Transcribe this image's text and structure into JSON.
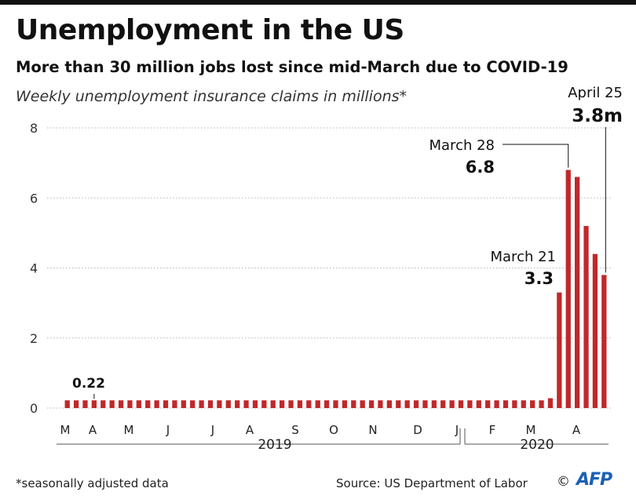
{
  "header": {
    "title": "Unemployment in the US",
    "subtitle": "More than 30 million jobs lost since mid-March due to COVID-19",
    "note": "Weekly unemployment insurance claims in millions*"
  },
  "footer": {
    "footnote": "*seasonally adjusted data",
    "source": "Source: US Department of Labor",
    "copyright": "©",
    "logo": "AFP"
  },
  "colors": {
    "bar": "#c0282a",
    "grid": "#b5b5b5",
    "text": "#111111"
  },
  "chart_data": {
    "type": "bar",
    "ylim": [
      0,
      8
    ],
    "yticks": [
      0,
      2,
      4,
      6,
      8
    ],
    "grid": "dotted horizontal",
    "month_ticks": [
      "M",
      "A",
      "M",
      "J",
      "J",
      "A",
      "S",
      "O",
      "N",
      "D",
      "J",
      "F",
      "M",
      "A"
    ],
    "year_labels": [
      "2019",
      "2020"
    ],
    "values": [
      0.22,
      0.22,
      0.22,
      0.22,
      0.22,
      0.22,
      0.22,
      0.22,
      0.22,
      0.22,
      0.22,
      0.22,
      0.22,
      0.22,
      0.22,
      0.22,
      0.22,
      0.22,
      0.22,
      0.22,
      0.22,
      0.22,
      0.22,
      0.22,
      0.22,
      0.22,
      0.22,
      0.22,
      0.22,
      0.22,
      0.22,
      0.22,
      0.22,
      0.22,
      0.22,
      0.22,
      0.22,
      0.22,
      0.22,
      0.22,
      0.22,
      0.22,
      0.22,
      0.22,
      0.22,
      0.22,
      0.22,
      0.22,
      0.22,
      0.22,
      0.22,
      0.22,
      0.22,
      0.22,
      0.28,
      3.3,
      6.8,
      6.6,
      5.2,
      4.4,
      3.8
    ],
    "annotations": [
      {
        "index": 3,
        "label": "",
        "value_text": "0.22"
      },
      {
        "index": 55,
        "label": "March 21",
        "value_text": "3.3"
      },
      {
        "index": 56,
        "label": "March 28",
        "value_text": "6.8"
      },
      {
        "index": 60,
        "label": "April 25",
        "value_text": "3.8m"
      }
    ]
  }
}
